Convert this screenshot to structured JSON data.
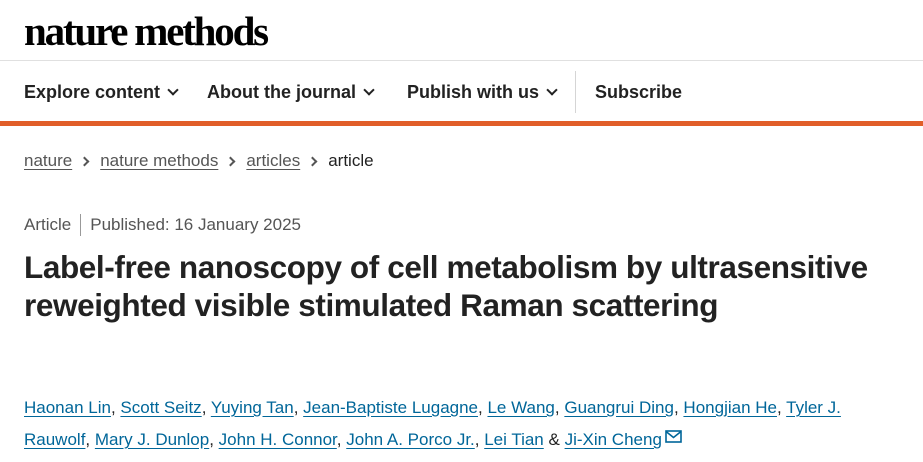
{
  "site": {
    "logo_text": "nature methods"
  },
  "nav": {
    "items": [
      {
        "label": "Explore content",
        "icon": "chevron-down-icon"
      },
      {
        "label": "About the journal",
        "icon": "chevron-down-icon"
      },
      {
        "label": "Publish with us",
        "icon": "chevron-down-icon"
      }
    ],
    "subscribe_label": "Subscribe",
    "accent_color": "#e15e29"
  },
  "breadcrumb": {
    "items": [
      "nature",
      "nature methods",
      "articles"
    ],
    "current": "article"
  },
  "article": {
    "type": "Article",
    "published": "Published: 16 January 2025",
    "title": "Label-free nanoscopy of cell metabolism by ultrasensitive reweighted visible stimulated Raman scattering",
    "authors": [
      "Haonan Lin",
      "Scott Seitz",
      "Yuying Tan",
      "Jean-Baptiste Lugagne",
      "Le Wang",
      "Guangrui Ding",
      "Hongjian He",
      "Tyler J. Rauwolf",
      "Mary J. Dunlop",
      "John H. Connor",
      "John A. Porco Jr.",
      "Lei Tian",
      "Ji-Xin Cheng"
    ],
    "last_author_joiner": "&",
    "link_color": "#006699"
  }
}
